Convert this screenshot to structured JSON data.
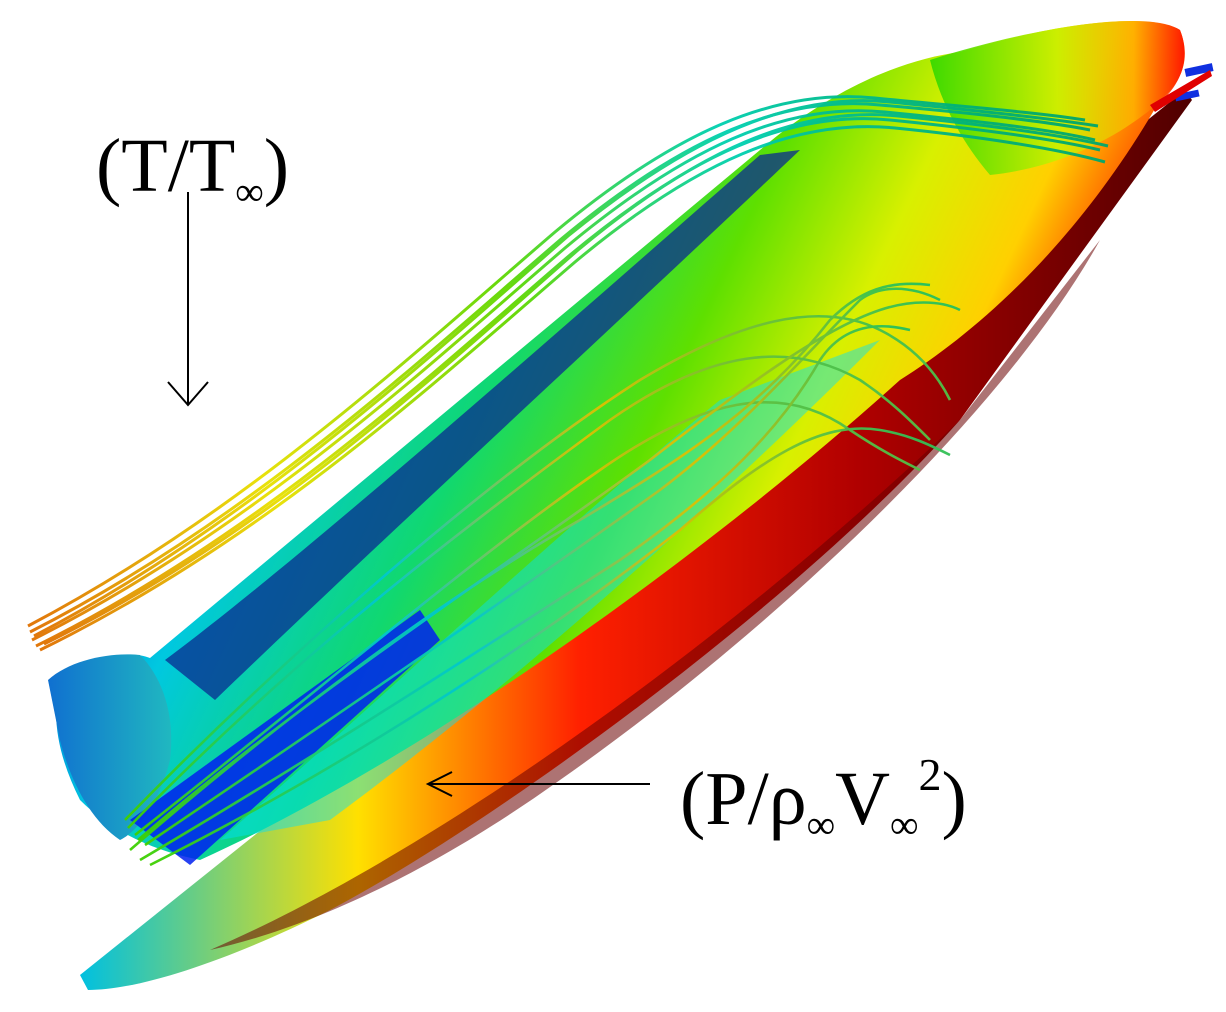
{
  "labels": {
    "temperature": {
      "open": "(T/T",
      "subscript": "∞",
      "close": ")"
    },
    "pressure": {
      "open": "(P/ρ",
      "subscript_rho": "∞",
      "v": "V",
      "subscript_v": "∞",
      "superscript": "2",
      "close": ")"
    }
  },
  "colors": {
    "background": "#ffffff",
    "arrow": "#000000",
    "colormap": [
      "#0000ff",
      "#00ffff",
      "#00ff00",
      "#ffff00",
      "#ff0000",
      "#400000"
    ]
  }
}
